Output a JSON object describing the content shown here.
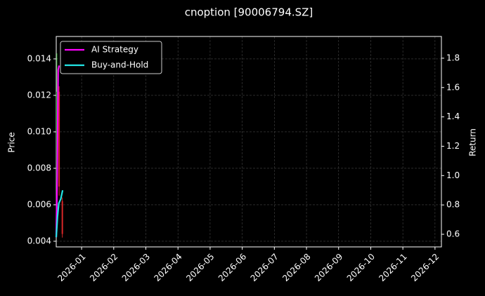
{
  "chart_data": {
    "type": "candlestick",
    "title": "cnoption [90006794.SZ]",
    "y_label": "Price",
    "y2_label": "Return",
    "xlim": [
      0.21,
      12.2
    ],
    "xticks": [
      {
        "value": 1,
        "label": "2026-01"
      },
      {
        "value": 2,
        "label": "2026-02"
      },
      {
        "value": 3,
        "label": "2026-03"
      },
      {
        "value": 4,
        "label": "2026-04"
      },
      {
        "value": 5,
        "label": "2026-05"
      },
      {
        "value": 6,
        "label": "2026-06"
      },
      {
        "value": 7,
        "label": "2026-07"
      },
      {
        "value": 8,
        "label": "2026-08"
      },
      {
        "value": 9,
        "label": "2026-09"
      },
      {
        "value": 10,
        "label": "2026-10"
      },
      {
        "value": 11,
        "label": "2026-11"
      },
      {
        "value": 12,
        "label": "2026-12"
      }
    ],
    "ylim": [
      0.00369,
      0.01523
    ],
    "yticks": [
      0.004,
      0.006,
      0.008,
      {
        "value": 0.01,
        "label": "0.010"
      },
      0.012,
      0.014
    ],
    "y2lim": [
      0.514,
      1.948
    ],
    "y2ticks": [
      0.6,
      0.8,
      {
        "value": 1,
        "label": "1.0"
      },
      1.2,
      1.4,
      1.6,
      1.8
    ],
    "grid": true,
    "legend": "upper left",
    "up_color": "#2ca02c",
    "down_color": "#d62728",
    "candles": {
      "x": [
        0.23,
        0.3,
        0.4
      ],
      "open": [
        0.005,
        0.0122,
        0.0062
      ],
      "high": [
        0.0143,
        0.0125,
        0.0064
      ],
      "low": [
        0.0045,
        0.0065,
        0.0042
      ],
      "close": [
        0.0122,
        0.007,
        0.0044
      ]
    },
    "series": [
      {
        "name": "AI Strategy",
        "color": "#ff00ff",
        "axis": "y2",
        "x": [
          0.21,
          0.24,
          0.27,
          0.3
        ],
        "values": [
          0.58,
          1.0,
          1.72,
          1.75
        ]
      },
      {
        "name": "Buy-and-Hold",
        "color": "#22e5e5",
        "axis": "y2",
        "x": [
          0.21,
          0.25,
          0.29,
          0.35,
          0.41
        ],
        "values": [
          0.58,
          0.72,
          0.81,
          0.84,
          0.9
        ]
      }
    ]
  }
}
